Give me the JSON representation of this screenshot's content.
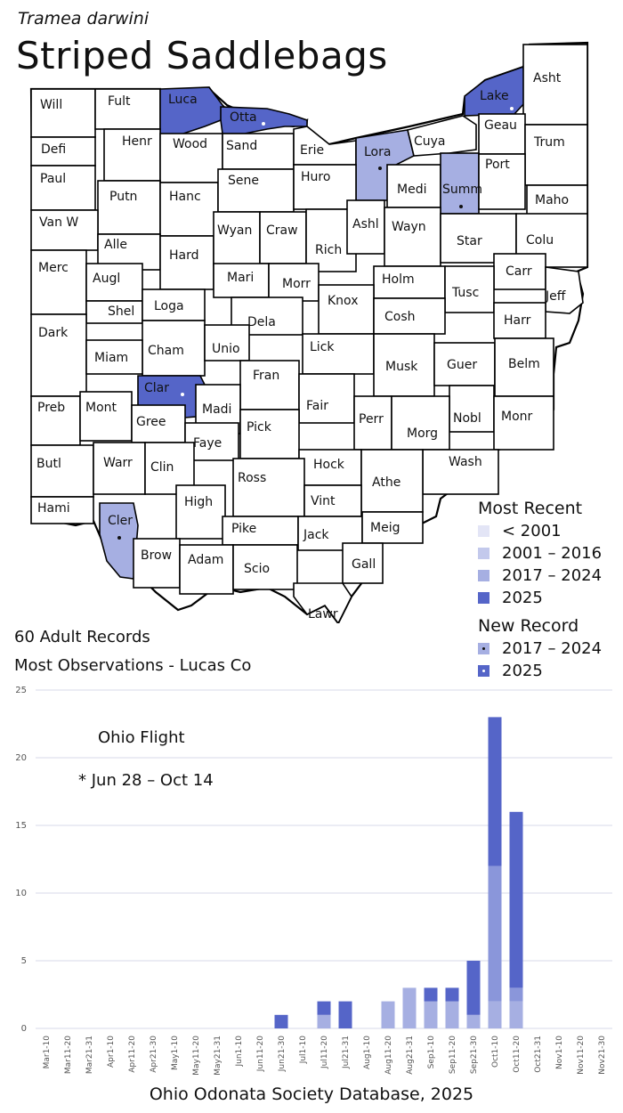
{
  "header": {
    "scientific_name": "Tramea darwini",
    "common_name": "Striped Saddlebags"
  },
  "colors": {
    "no_record": "#ffffff",
    "lt2001": "#e3e5f6",
    "y2001_2016": "#c3c9ec",
    "y2017_2024": "#a6afe2",
    "y2025": "#5565c8",
    "bar_2017_2024": "#a6afe2",
    "bar_2025": "#5565c8",
    "bar_older": "#8a96da",
    "gridline": "#d7dae9"
  },
  "map": {
    "counties": [
      {
        "name": "Will",
        "status": "none"
      },
      {
        "name": "Fult",
        "status": "none"
      },
      {
        "name": "Luca",
        "status": "2025"
      },
      {
        "name": "Otta",
        "status": "2025",
        "new_record": "2025"
      },
      {
        "name": "Wood",
        "status": "none"
      },
      {
        "name": "Sand",
        "status": "none"
      },
      {
        "name": "Erie",
        "status": "none"
      },
      {
        "name": "Lora",
        "status": "2017-2024",
        "new_record": "2017-2024"
      },
      {
        "name": "Cuya",
        "status": "none"
      },
      {
        "name": "Lake",
        "status": "2025",
        "new_record": "2025"
      },
      {
        "name": "Asht",
        "status": "none"
      },
      {
        "name": "Geau",
        "status": "none"
      },
      {
        "name": "Trum",
        "status": "none"
      },
      {
        "name": "Defi",
        "status": "none"
      },
      {
        "name": "Henr",
        "status": "none"
      },
      {
        "name": "Sene",
        "status": "none"
      },
      {
        "name": "Huro",
        "status": "none"
      },
      {
        "name": "Medi",
        "status": "none"
      },
      {
        "name": "Summ",
        "status": "2017-2024",
        "new_record": "2017-2024"
      },
      {
        "name": "Port",
        "status": "none"
      },
      {
        "name": "Paul",
        "status": "none"
      },
      {
        "name": "Putn",
        "status": "none"
      },
      {
        "name": "Hanc",
        "status": "none"
      },
      {
        "name": "Maho",
        "status": "none"
      },
      {
        "name": "Van W",
        "status": "none"
      },
      {
        "name": "Alle",
        "status": "none"
      },
      {
        "name": "Wyan",
        "status": "none"
      },
      {
        "name": "Craw",
        "status": "none"
      },
      {
        "name": "Ashl",
        "status": "none"
      },
      {
        "name": "Wayn",
        "status": "none"
      },
      {
        "name": "Star",
        "status": "none"
      },
      {
        "name": "Colu",
        "status": "none"
      },
      {
        "name": "Rich",
        "status": "none"
      },
      {
        "name": "Hard",
        "status": "none"
      },
      {
        "name": "Merc",
        "status": "none"
      },
      {
        "name": "Augl",
        "status": "none"
      },
      {
        "name": "Mari",
        "status": "none"
      },
      {
        "name": "Morr",
        "status": "none"
      },
      {
        "name": "Holm",
        "status": "none"
      },
      {
        "name": "Carr",
        "status": "none"
      },
      {
        "name": "Tusc",
        "status": "none"
      },
      {
        "name": "Jeff",
        "status": "none"
      },
      {
        "name": "Shel",
        "status": "none"
      },
      {
        "name": "Loga",
        "status": "none"
      },
      {
        "name": "Knox",
        "status": "none"
      },
      {
        "name": "Dela",
        "status": "none"
      },
      {
        "name": "Cosh",
        "status": "none"
      },
      {
        "name": "Harr",
        "status": "none"
      },
      {
        "name": "Dark",
        "status": "none"
      },
      {
        "name": "Cham",
        "status": "none"
      },
      {
        "name": "Unio",
        "status": "none"
      },
      {
        "name": "Lick",
        "status": "none"
      },
      {
        "name": "Miam",
        "status": "none"
      },
      {
        "name": "Musk",
        "status": "none"
      },
      {
        "name": "Guer",
        "status": "none"
      },
      {
        "name": "Belm",
        "status": "none"
      },
      {
        "name": "Fran",
        "status": "none"
      },
      {
        "name": "Clar",
        "status": "2025",
        "new_record": "2025"
      },
      {
        "name": "Madi",
        "status": "none"
      },
      {
        "name": "Preb",
        "status": "none"
      },
      {
        "name": "Mont",
        "status": "none"
      },
      {
        "name": "Gree",
        "status": "none"
      },
      {
        "name": "Fair",
        "status": "none"
      },
      {
        "name": "Perr",
        "status": "none"
      },
      {
        "name": "Nobl",
        "status": "none"
      },
      {
        "name": "Monr",
        "status": "none"
      },
      {
        "name": "Pick",
        "status": "none"
      },
      {
        "name": "Morg",
        "status": "none"
      },
      {
        "name": "Faye",
        "status": "none"
      },
      {
        "name": "Butl",
        "status": "none"
      },
      {
        "name": "Warr",
        "status": "none"
      },
      {
        "name": "Clin",
        "status": "none"
      },
      {
        "name": "Hock",
        "status": "none"
      },
      {
        "name": "Wash",
        "status": "none"
      },
      {
        "name": "Ross",
        "status": "none"
      },
      {
        "name": "Athe",
        "status": "none"
      },
      {
        "name": "Hami",
        "status": "none"
      },
      {
        "name": "High",
        "status": "none"
      },
      {
        "name": "Vint",
        "status": "none"
      },
      {
        "name": "Cler",
        "status": "2017-2024",
        "new_record": "2017-2024"
      },
      {
        "name": "Pike",
        "status": "none"
      },
      {
        "name": "Jack",
        "status": "none"
      },
      {
        "name": "Meig",
        "status": "none"
      },
      {
        "name": "Brow",
        "status": "none"
      },
      {
        "name": "Adam",
        "status": "none"
      },
      {
        "name": "Scio",
        "status": "none"
      },
      {
        "name": "Gall",
        "status": "none"
      },
      {
        "name": "Lawr",
        "status": "none"
      }
    ]
  },
  "legend": {
    "most_recent_title": "Most Recent",
    "most_recent_items": [
      {
        "label": "< 2001",
        "color": "#e3e5f6"
      },
      {
        "label": "2001 – 2016",
        "color": "#c3c9ec"
      },
      {
        "label": "2017 – 2024",
        "color": "#a6afe2"
      },
      {
        "label": "2025",
        "color": "#5565c8"
      }
    ],
    "new_record_title": "New Record",
    "new_record_items": [
      {
        "label": "2017 – 2024",
        "color": "#a6afe2",
        "dot": "#111111"
      },
      {
        "label": "2025",
        "color": "#5565c8",
        "dot": "#ffffff"
      }
    ]
  },
  "stats": {
    "records": "60 Adult Records",
    "most_obs": "Most Observations - Lucas Co"
  },
  "flight": {
    "title": "Ohio Flight",
    "marker": "*",
    "range": "Jun 28 – Oct 14"
  },
  "source": "Ohio Odonata Society Database, 2025",
  "chart_data": {
    "type": "bar",
    "stacked": true,
    "title": "Ohio Flight",
    "ylim": [
      0,
      25
    ],
    "yticks": [
      0,
      5,
      10,
      15,
      20,
      25
    ],
    "grid": true,
    "categories": [
      "Mar1-10",
      "Mar11-20",
      "Mar21-31",
      "Apr1-10",
      "Apr11-20",
      "Apr21-30",
      "May1-10",
      "May11-20",
      "May21-31",
      "Jun1-10",
      "Jun11-20",
      "Jun21-30",
      "Jul1-10",
      "Jul11-20",
      "Jul21-31",
      "Aug1-10",
      "Aug11-20",
      "Aug21-31",
      "Sep1-10",
      "Sep11-20",
      "Sep21-30",
      "Oct1-10",
      "Oct11-20",
      "Oct21-31",
      "Nov1-10",
      "Nov11-20",
      "Nov21-30"
    ],
    "series": [
      {
        "color": "#a6afe2",
        "values": [
          0,
          0,
          0,
          0,
          0,
          0,
          0,
          0,
          0,
          0,
          0,
          0,
          0,
          1,
          0,
          0,
          2,
          3,
          2,
          2,
          1,
          2,
          2,
          0,
          0,
          0,
          0
        ]
      },
      {
        "color": "#8a96da",
        "values": [
          0,
          0,
          0,
          0,
          0,
          0,
          0,
          0,
          0,
          0,
          0,
          0,
          0,
          0,
          0,
          0,
          0,
          0,
          0,
          0,
          0,
          10,
          1,
          0,
          0,
          0,
          0
        ]
      },
      {
        "color": "#5565c8",
        "values": [
          0,
          0,
          0,
          0,
          0,
          0,
          0,
          0,
          0,
          0,
          0,
          1,
          0,
          1,
          2,
          0,
          0,
          0,
          1,
          1,
          4,
          11,
          13,
          0,
          0,
          0,
          0
        ]
      }
    ]
  }
}
